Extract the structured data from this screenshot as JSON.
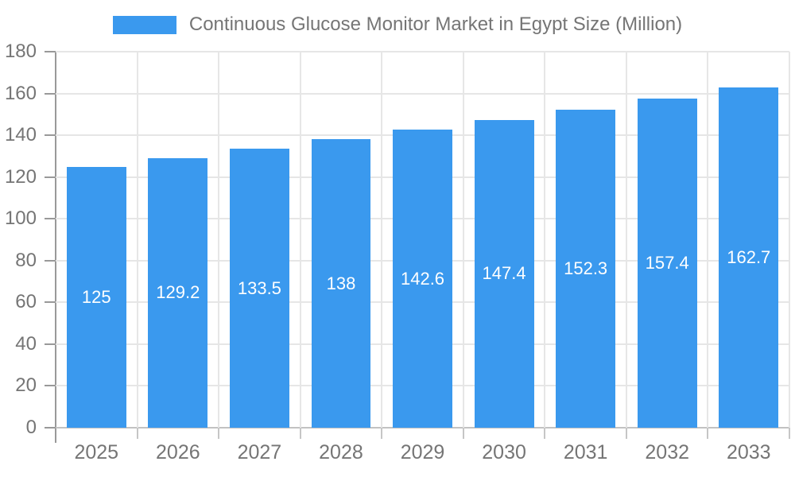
{
  "legend": {
    "label": "Continuous Glucose Monitor Market in Egypt Size (Million)"
  },
  "colors": {
    "bar": "#3a99ee",
    "grid": "#e6e6e6",
    "baseline": "#c2c2c2",
    "axis": "#999999",
    "text": "#757575",
    "bar_label": "#ffffff"
  },
  "chart_data": {
    "type": "bar",
    "title": "Continuous Glucose Monitor Market in Egypt Size (Million)",
    "categories": [
      "2025",
      "2026",
      "2027",
      "2028",
      "2029",
      "2030",
      "2031",
      "2032",
      "2033"
    ],
    "values": [
      125,
      129.2,
      133.5,
      138,
      142.6,
      147.4,
      152.3,
      157.4,
      162.7
    ],
    "value_labels": [
      "125",
      "129.2",
      "133.5",
      "138",
      "142.6",
      "147.4",
      "152.3",
      "157.4",
      "162.7"
    ],
    "xlabel": "",
    "ylabel": "",
    "ylim": [
      0,
      180
    ],
    "yticks": [
      0,
      20,
      40,
      60,
      80,
      100,
      120,
      140,
      160,
      180
    ],
    "grid": true,
    "legend_position": "top",
    "bar_label_position": "center"
  }
}
